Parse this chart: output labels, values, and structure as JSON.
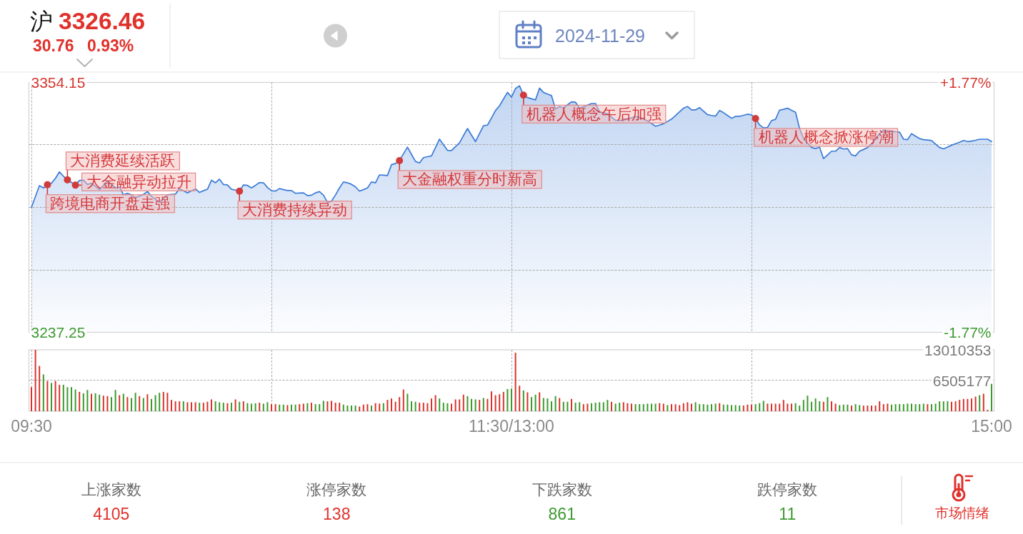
{
  "chart_data": [
    {
      "type": "other",
      "annotations": [
        "沪",
        "3326.46",
        "30.76",
        "0.93%",
        "2024-11-29"
      ]
    },
    {
      "type": "area",
      "categories": [
        "09:30",
        null,
        null,
        null,
        null,
        null,
        null,
        null,
        null,
        null,
        null,
        null,
        null,
        null,
        null,
        null,
        null,
        null,
        null,
        null,
        null,
        null,
        null,
        null,
        null,
        null,
        null,
        null,
        null,
        null,
        null,
        null,
        null,
        null,
        null,
        null,
        null,
        null,
        null,
        null,
        null,
        null,
        null,
        null,
        null,
        null,
        null,
        null,
        null,
        null,
        null,
        null,
        null,
        null,
        null,
        null,
        null,
        null,
        null,
        null,
        null,
        null,
        null,
        null,
        null,
        null,
        null,
        null,
        null,
        null,
        null,
        null,
        null,
        null,
        null,
        null,
        null,
        null,
        null,
        null,
        null,
        null,
        null,
        null,
        null,
        null,
        null,
        null,
        null,
        null,
        null,
        null,
        null,
        null,
        null,
        null,
        null,
        null,
        null,
        null,
        null,
        null,
        null,
        null,
        null,
        null,
        null,
        null,
        null,
        null,
        null,
        null,
        null,
        null,
        null,
        null,
        null,
        null,
        null,
        null,
        "11:30/13:00",
        null,
        null,
        null,
        null,
        null,
        null,
        null,
        null,
        null,
        null,
        null,
        null,
        null,
        null,
        null,
        null,
        null,
        null,
        null,
        null,
        null,
        null,
        null,
        null,
        null,
        null,
        null,
        null,
        null,
        null,
        null,
        null,
        null,
        null,
        null,
        null,
        null,
        null,
        null,
        null,
        null,
        null,
        null,
        null,
        null,
        null,
        null,
        null,
        null,
        null,
        null,
        null,
        null,
        null,
        null,
        null,
        null,
        null,
        null,
        null,
        null,
        null,
        null,
        null,
        null,
        null,
        null,
        null,
        null,
        null,
        null,
        null,
        null,
        null,
        null,
        null,
        null,
        null,
        null,
        null,
        null,
        null,
        null,
        null,
        null,
        null,
        null,
        null,
        null,
        null,
        null,
        null,
        null,
        null,
        null,
        null,
        null,
        null,
        null,
        null,
        null,
        null,
        null,
        null,
        null,
        null,
        null,
        null,
        null,
        null,
        null,
        null,
        null,
        null,
        null,
        null,
        null,
        null,
        null,
        "15:00"
      ],
      "series": [
        {
          "color": "#3b7bd6",
          "values": [
            3295.7,
            3300.8,
            3305.9,
            3304.8,
            3306.3,
            3307.0,
            3309.3,
            3312.3,
            3310.3,
            3308.6,
            3307.4,
            3306.1,
            3308.3,
            3308.5,
            3306.4,
            3307.0,
            3305.5,
            3304.0,
            3306.0,
            3308.1,
            3306.5,
            3304.8,
            3305.3,
            3301.6,
            3302.3,
            3301.6,
            3300.3,
            3301.0,
            3301.8,
            3303.1,
            3300.9,
            3299.5,
            3298.1,
            3299.9,
            3301.6,
            3301.8,
            3301.9,
            3304.5,
            3303.5,
            3302.5,
            3303.5,
            3304.4,
            3302.7,
            3303.5,
            3304.2,
            3308.4,
            3307.2,
            3308.9,
            3306.4,
            3306.2,
            3304.2,
            3303.8,
            3303.3,
            3306.2,
            3306.0,
            3304.8,
            3306.0,
            3307.3,
            3307.2,
            3305.0,
            3303.5,
            3303.3,
            3304.5,
            3304.0,
            3303.6,
            3303.6,
            3302.3,
            3302.4,
            3302.5,
            3301.2,
            3301.4,
            3302.5,
            3303.1,
            3301.4,
            3298.1,
            3298.6,
            3301.5,
            3304.8,
            3307.6,
            3307.2,
            3306.5,
            3305.3,
            3303.3,
            3304.0,
            3304.8,
            3307.6,
            3307.2,
            3310.9,
            3310.8,
            3310.6,
            3315.7,
            3316.2,
            3317.6,
            3320.8,
            3323.9,
            3320.5,
            3317.2,
            3316.5,
            3319.0,
            3319.4,
            3319.8,
            3323.7,
            3327.6,
            3325.0,
            3322.4,
            3322.3,
            3324.1,
            3325.9,
            3329.3,
            3332.6,
            3329.5,
            3326.5,
            3330.2,
            3333.9,
            3334.2,
            3337.6,
            3341.0,
            3343.2,
            3346.4,
            3349.5,
            3347.3,
            3351.3,
            3352.6,
            3348.2,
            3347.1,
            3346.5,
            3346.0,
            3351.5,
            3349.5,
            3348.7,
            3348.0,
            3341.7,
            3342.9,
            3342.2,
            3343.7,
            3345.1,
            3344.9,
            3342.1,
            3342.8,
            3343.5,
            3344.3,
            3344.3,
            3340.4,
            3339.9,
            3339.5,
            3338.0,
            3336.5,
            3336.4,
            3336.5,
            3337.1,
            3337.6,
            3338.2,
            3337.8,
            3337.1,
            3336.1,
            3334.9,
            3333.7,
            3334.2,
            3334.8,
            3335.9,
            3337.0,
            3338.7,
            3340.4,
            3342.1,
            3342.9,
            3341.3,
            3341.3,
            3342.4,
            3340.7,
            3339.1,
            3338.7,
            3338.4,
            3341.0,
            3340.0,
            3338.7,
            3337.4,
            3338.3,
            3338.3,
            3338.8,
            3339.3,
            3339.0,
            3337.3,
            3334.3,
            3332.9,
            3333.1,
            3336.3,
            3336.9,
            3341.2,
            3341.6,
            3342.1,
            3341.1,
            3340.2,
            3332.6,
            3328.0,
            3325.8,
            3323.7,
            3323.2,
            3323.9,
            3318.5,
            3320.2,
            3322.0,
            3322.0,
            3323.7,
            3323.0,
            3323.2,
            3320.3,
            3319.8,
            3322.0,
            3322.8,
            3323.7,
            3325.4,
            3327.8,
            3330.2,
            3331.8,
            3331.5,
            3331.3,
            3331.1,
            3330.9,
            3327.6,
            3327.4,
            3330.2,
            3329.0,
            3327.9,
            3327.4,
            3327.2,
            3327.0,
            3325.3,
            3323.7,
            3323.1,
            3323.9,
            3324.8,
            3325.5,
            3326.2,
            3327.0,
            3326.5,
            3326.7,
            3327.1,
            3327.6,
            3327.6,
            3327.6,
            3326.5
          ]
        },
        {
          "type": "scatter",
          "color": "#d23b3b",
          "marker": "circle",
          "values": [
            null,
            null,
            null,
            null,
            3306.3,
            null,
            null,
            null,
            null,
            3308.6,
            null,
            3306.1,
            null,
            null,
            null,
            null,
            null,
            null,
            null,
            null,
            null,
            null,
            null,
            null,
            null,
            null,
            null,
            null,
            null,
            null,
            null,
            null,
            null,
            null,
            null,
            null,
            null,
            null,
            null,
            null,
            null,
            null,
            null,
            null,
            null,
            null,
            null,
            null,
            null,
            null,
            null,
            null,
            3303.3,
            null,
            null,
            null,
            null,
            null,
            null,
            null,
            null,
            null,
            null,
            null,
            null,
            null,
            null,
            null,
            null,
            null,
            null,
            null,
            null,
            null,
            null,
            null,
            null,
            null,
            null,
            null,
            null,
            null,
            null,
            null,
            null,
            null,
            null,
            null,
            null,
            null,
            null,
            null,
            3317.6,
            null,
            null,
            null,
            null,
            null,
            null,
            null,
            null,
            null,
            null,
            null,
            null,
            null,
            null,
            null,
            null,
            null,
            null,
            null,
            null,
            null,
            null,
            null,
            null,
            null,
            null,
            null,
            null,
            null,
            null,
            3348.2,
            null,
            null,
            null,
            null,
            null,
            null,
            null,
            null,
            null,
            null,
            null,
            null,
            null,
            null,
            null,
            null,
            null,
            null,
            null,
            null,
            null,
            null,
            null,
            null,
            null,
            null,
            null,
            null,
            null,
            null,
            null,
            null,
            null,
            null,
            null,
            null,
            null,
            null,
            null,
            null,
            null,
            null,
            null,
            null,
            null,
            null,
            null,
            null,
            null,
            null,
            null,
            null,
            null,
            null,
            null,
            null,
            null,
            3337.3,
            null,
            null,
            null,
            null,
            null,
            null,
            null,
            null,
            null,
            null,
            null,
            null,
            null,
            null,
            null,
            null,
            null,
            null,
            null,
            null,
            null,
            null,
            null,
            null,
            null,
            null,
            null,
            null,
            null,
            null,
            null,
            null,
            null,
            null,
            null,
            null,
            null,
            null,
            null,
            null,
            null,
            null,
            null,
            null,
            null,
            null,
            null,
            null,
            null,
            null,
            null,
            null,
            null,
            null,
            null,
            null,
            null,
            null,
            null
          ]
        },
        {
          "type": "bar",
          "axis": "y3",
          "values": [
            5100000,
            13000000,
            9600000,
            7800000,
            6400000,
            6000000,
            6400000,
            5600000,
            5600000,
            5100000,
            5100000,
            4600000,
            4100000,
            3800000,
            4500000,
            3700000,
            3800000,
            3500000,
            3300000,
            3200000,
            3000000,
            4500000,
            3400000,
            3700000,
            3000000,
            2800000,
            3900000,
            3200000,
            2800000,
            3600000,
            2600000,
            3400000,
            3900000,
            4100000,
            3900000,
            2400000,
            2100000,
            2100000,
            2100000,
            1900000,
            1900000,
            1900000,
            1800000,
            1800000,
            2000000,
            2500000,
            2100000,
            1900000,
            1800000,
            1700000,
            1800000,
            2500000,
            2000000,
            2100000,
            1700000,
            1600000,
            1700000,
            1800000,
            1600000,
            1900000,
            1500000,
            1500000,
            1400000,
            1400000,
            1300000,
            1400000,
            1400000,
            1500000,
            1600000,
            1700000,
            1800000,
            1500000,
            1500000,
            2200000,
            2100000,
            2200000,
            1800000,
            1800000,
            1400000,
            1200000,
            1200000,
            1200000,
            1000000,
            1400000,
            1500000,
            1200000,
            1700000,
            1600000,
            1700000,
            2400000,
            2700000,
            2000000,
            3000000,
            4600000,
            3700000,
            2100000,
            2000000,
            1800000,
            1800000,
            1700000,
            2700000,
            3400000,
            2700000,
            1800000,
            1700000,
            1600000,
            2500000,
            2500000,
            3500000,
            3200000,
            2600000,
            2500000,
            2400000,
            2800000,
            2600000,
            4200000,
            3400000,
            3600000,
            4100000,
            4700000,
            4800000,
            12400000,
            5400000,
            4400000,
            4000000,
            3000000,
            3500000,
            4000000,
            2800000,
            2700000,
            2100000,
            3200000,
            2800000,
            2000000,
            2000000,
            2600000,
            1800000,
            1900000,
            1500000,
            1600000,
            1700000,
            1800000,
            1900000,
            1900000,
            2400000,
            2000000,
            1600000,
            1800000,
            1900000,
            1700000,
            1600000,
            1500000,
            1500000,
            1500000,
            1600000,
            1600000,
            1600000,
            1700000,
            1600000,
            1300000,
            1500000,
            1500000,
            1300000,
            1700000,
            1900000,
            1600000,
            1900000,
            1500000,
            1500000,
            1400000,
            1500000,
            1600000,
            1700000,
            1400000,
            1400000,
            1300000,
            1300000,
            1200000,
            1200000,
            1400000,
            1400000,
            1500000,
            1700000,
            2200000,
            1600000,
            1600000,
            1600000,
            1600000,
            2400000,
            1600000,
            1600000,
            1700000,
            1200000,
            2400000,
            3300000,
            2000000,
            2700000,
            2100000,
            2000000,
            3000000,
            2100000,
            1600000,
            1300000,
            1400000,
            1400000,
            1200000,
            1500000,
            1300000,
            1200000,
            1200000,
            1200000,
            1200000,
            2100000,
            1500000,
            1600000,
            1400000,
            1500000,
            1500000,
            1500000,
            1600000,
            1600000,
            1500000,
            1500000,
            1600000,
            1500000,
            1500000,
            1600000,
            2100000,
            2100000,
            2100000,
            2000000,
            2100000,
            2400000,
            2600000,
            2600000,
            2700000,
            3100000,
            3400000,
            3700000,
            300000,
            5800000
          ],
          "colors": [
            "#d8342d",
            "#d8342d",
            "#d8342d",
            "#3c9a2e",
            "#d8342d",
            "#3c9a2e",
            "#d8342d",
            "#d8342d",
            "#3c9a2e",
            "#3c9a2e",
            "#3c9a2e",
            "#3c9a2e",
            "#d8342d",
            "#3c9a2e",
            "#3c9a2e",
            "#d8342d",
            "#3c9a2e",
            "#3c9a2e",
            "#d8342d",
            "#d8342d",
            "#3c9a2e",
            "#3c9a2e",
            "#d8342d",
            "#3c9a2e",
            "#d8342d",
            "#3c9a2e",
            "#3c9a2e",
            "#d8342d",
            "#3c9a2e",
            "#d8342d",
            "#3c9a2e",
            "#3c9a2e",
            "#3c9a2e",
            "#d8342d",
            "#d8342d",
            "#d8342d",
            "#d8342d",
            "#d8342d",
            "#3c9a2e",
            "#d8342d",
            "#d8342d",
            "#d8342d",
            "#3c9a2e",
            "#d8342d",
            "#d8342d",
            "#d8342d",
            "#3c9a2e",
            "#3c9a2e",
            "#3c9a2e",
            "#d8342d",
            "#3c9a2e",
            "#d8342d",
            "#3c9a2e",
            "#d8342d",
            "#3c9a2e",
            "#3c9a2e",
            "#3c9a2e",
            "#d8342d",
            "#3c9a2e",
            "#3c9a2e",
            "#d8342d",
            "#d8342d",
            "#3c9a2e",
            "#3c9a2e",
            "#d8342d",
            "#3c9a2e",
            "#3c9a2e",
            "#d8342d",
            "#d8342d",
            "#3c9a2e",
            "#d8342d",
            "#3c9a2e",
            "#3c9a2e",
            "#3c9a2e",
            "#d8342d",
            "#d8342d",
            "#d8342d",
            "#d8342d",
            "#3c9a2e",
            "#3c9a2e",
            "#3c9a2e",
            "#3c9a2e",
            "#d8342d",
            "#d8342d",
            "#d8342d",
            "#3c9a2e",
            "#d8342d",
            "#d8342d",
            "#3c9a2e",
            "#d8342d",
            "#d8342d",
            "#d8342d",
            "#d8342d",
            "#d8342d",
            "#3c9a2e",
            "#3c9a2e",
            "#3c9a2e",
            "#d8342d",
            "#d8342d",
            "#d8342d",
            "#d8342d",
            "#d8342d",
            "#3c9a2e",
            "#3c9a2e",
            "#3c9a2e",
            "#d8342d",
            "#d8342d",
            "#d8342d",
            "#d8342d",
            "#3c9a2e",
            "#3c9a2e",
            "#3c9a2e",
            "#d8342d",
            "#3c9a2e",
            "#d8342d",
            "#d8342d",
            "#d8342d",
            "#d8342d",
            "#d8342d",
            "#3c9a2e",
            "#3c9a2e",
            "#d8342d",
            "#d8342d",
            "#3c9a2e",
            "#d8342d",
            "#3c9a2e",
            "#3c9a2e",
            "#d8342d",
            "#3c9a2e",
            "#3c9a2e",
            "#3c9a2e",
            "#3c9a2e",
            "#d8342d",
            "#3c9a2e",
            "#3c9a2e",
            "#d8342d",
            "#3c9a2e",
            "#3c9a2e",
            "#d8342d",
            "#d8342d",
            "#3c9a2e",
            "#3c9a2e",
            "#3c9a2e",
            "#3c9a2e",
            "#3c9a2e",
            "#d8342d",
            "#3c9a2e",
            "#3c9a2e",
            "#d8342d",
            "#d8342d",
            "#d8342d",
            "#3c9a2e",
            "#3c9a2e",
            "#3c9a2e",
            "#3c9a2e",
            "#3c9a2e",
            "#3c9a2e",
            "#d8342d",
            "#d8342d",
            "#3c9a2e",
            "#d8342d",
            "#d8342d",
            "#d8342d",
            "#d8342d",
            "#d8342d",
            "#d8342d",
            "#3c9a2e",
            "#3c9a2e",
            "#3c9a2e",
            "#3c9a2e",
            "#3c9a2e",
            "#3c9a2e",
            "#d8342d",
            "#3c9a2e",
            "#3c9a2e",
            "#3c9a2e",
            "#3c9a2e",
            "#3c9a2e",
            "#d8342d",
            "#d8342d",
            "#d8342d",
            "#3c9a2e",
            "#3c9a2e",
            "#3c9a2e",
            "#d8342d",
            "#d8342d",
            "#d8342d",
            "#d8342d",
            "#d8342d",
            "#d8342d",
            "#d8342d",
            "#3c9a2e",
            "#3c9a2e",
            "#3c9a2e",
            "#3c9a2e",
            "#3c9a2e",
            "#3c9a2e",
            "#3c9a2e",
            "#d8342d",
            "#3c9a2e",
            "#d8342d",
            "#d8342d",
            "#3c9a2e",
            "#3c9a2e",
            "#3c9a2e",
            "#d8342d",
            "#3c9a2e",
            "#3c9a2e",
            "#d8342d",
            "#d8342d",
            "#d8342d",
            "#d8342d",
            "#d8342d",
            "#d8342d",
            "#d8342d",
            "#3c9a2e",
            "#3c9a2e",
            "#3c9a2e",
            "#3c9a2e",
            "#3c9a2e",
            "#3c9a2e",
            "#3c9a2e",
            "#3c9a2e",
            "#3c9a2e",
            "#d8342d",
            "#3c9a2e",
            "#3c9a2e",
            "#3c9a2e",
            "#3c9a2e",
            "#3c9a2e",
            "#d8342d",
            "#d8342d",
            "#d8342d",
            "#d8342d",
            "#d8342d",
            "#d8342d",
            "#d8342d",
            "#3c9a2e",
            "#d8342d",
            "#d8342d",
            "#3c9a2e"
          ]
        }
      ],
      "ylim": [
        3237.25,
        3354.15
      ],
      "yticks": [
        3237.25,
        {
          "value": 3266.475,
          "label": null
        },
        {
          "value": 3295.7,
          "label": null
        },
        {
          "value": 3324.925,
          "label": null
        },
        3354.15
      ],
      "y2lim": [
        -1.77,
        1.77
      ],
      "y2ticks": [
        {
          "value": -1.77,
          "label": "-1.77%"
        },
        {
          "value": 1.77,
          "label": "+1.77%"
        }
      ],
      "y3lim": [
        0,
        13010353
      ],
      "y3ticks": [
        6505177,
        13010353
      ],
      "grid": true,
      "annotations": [
        "跨境电商开盘走强",
        "大消费延续活跃",
        "大金融异动拉升",
        "大消费持续异动",
        "大金融权重分时新高",
        "机器人概念午后加强",
        "机器人概念掀涨停潮"
      ]
    },
    {
      "type": "other",
      "categories": [
        "上涨家数",
        "涨停家数",
        "下跌家数",
        "跌停家数"
      ],
      "values": [
        4105,
        138,
        861,
        11
      ],
      "colors": [
        "#e0312b",
        "#e0312b",
        "#3d9a30",
        "#3d9a30"
      ],
      "data_labels": true,
      "annotations": [
        "市场情绪"
      ]
    }
  ]
}
